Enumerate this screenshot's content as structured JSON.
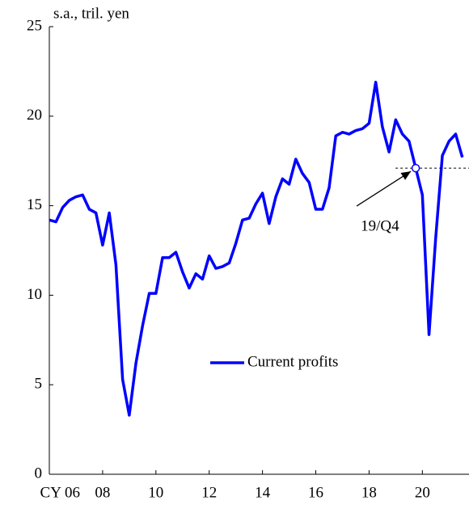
{
  "chart_data": {
    "type": "line",
    "y_label": "s.a., tril.  yen",
    "x": [
      2006,
      2006.25,
      2006.5,
      2006.75,
      2007,
      2007.25,
      2007.5,
      2007.75,
      2008,
      2008.25,
      2008.5,
      2008.75,
      2009,
      2009.25,
      2009.5,
      2009.75,
      2010,
      2010.25,
      2010.5,
      2010.75,
      2011,
      2011.25,
      2011.5,
      2011.75,
      2012,
      2012.25,
      2012.5,
      2012.75,
      2013,
      2013.25,
      2013.5,
      2013.75,
      2014,
      2014.25,
      2014.5,
      2014.75,
      2015,
      2015.25,
      2015.5,
      2015.75,
      2016,
      2016.25,
      2016.5,
      2016.75,
      2017,
      2017.25,
      2017.5,
      2017.75,
      2018,
      2018.25,
      2018.5,
      2018.75,
      2019,
      2019.25,
      2019.5,
      2019.75,
      2020,
      2020.25,
      2020.5,
      2020.75,
      2021,
      2021.25,
      2021.5
    ],
    "series": [
      {
        "name": "Current profits",
        "color": "#0000ff",
        "values": [
          14.2,
          14.1,
          14.9,
          15.3,
          15.5,
          15.6,
          14.8,
          14.6,
          12.8,
          14.6,
          11.7,
          5.3,
          3.3,
          6.2,
          8.3,
          10.1,
          10.1,
          12.1,
          12.1,
          12.4,
          11.3,
          10.4,
          11.2,
          10.9,
          12.2,
          11.5,
          11.6,
          11.8,
          12.9,
          14.2,
          14.3,
          15.1,
          15.7,
          14.0,
          15.5,
          16.5,
          16.2,
          17.6,
          16.8,
          16.3,
          14.8,
          14.8,
          16.0,
          18.9,
          19.1,
          19.0,
          19.2,
          19.3,
          19.6,
          21.9,
          19.4,
          18.0,
          19.8,
          19.0,
          18.6,
          17.1,
          15.6,
          7.8,
          13.2,
          17.8,
          18.6,
          19.0,
          17.7
        ]
      }
    ],
    "annotation": {
      "text": "19/Q4",
      "index": 55
    },
    "xlim": [
      2006,
      2021.75
    ],
    "xticks": [
      {
        "value": 2006,
        "label": "CY 06"
      },
      {
        "value": 2008,
        "label": "08"
      },
      {
        "value": 2010,
        "label": "10"
      },
      {
        "value": 2012,
        "label": "12"
      },
      {
        "value": 2014,
        "label": "14"
      },
      {
        "value": 2016,
        "label": "16"
      },
      {
        "value": 2018,
        "label": "18"
      },
      {
        "value": 2020,
        "label": "20"
      }
    ],
    "ylim": [
      0,
      25
    ],
    "yticks": [
      0,
      5,
      10,
      15,
      20,
      25
    ],
    "grid": false,
    "legend": "center"
  }
}
